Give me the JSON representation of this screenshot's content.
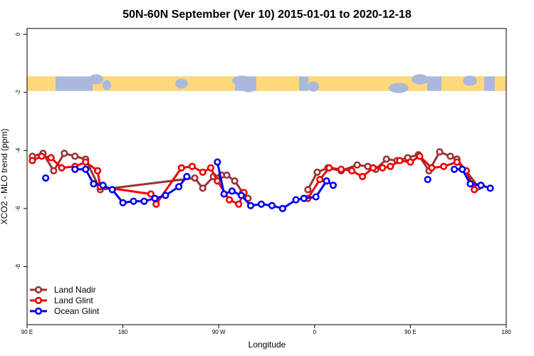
{
  "chart_data": {
    "type": "line",
    "title": "50N-60N September (Ver 10)   2015-01-01 to 2020-12-18",
    "xlabel": "Longitude",
    "ylabel": "XCO2 - MLO trend (ppm)",
    "xlim": [
      -90,
      270
    ],
    "ylim": [
      -10,
      0.2
    ],
    "x_ticks": [
      {
        "value": -90,
        "label": "90 E"
      },
      {
        "value": -18,
        "label": "180"
      },
      {
        "value": 54,
        "label": "90 W"
      },
      {
        "value": 126,
        "label": "0"
      },
      {
        "value": 198,
        "label": "90 E"
      },
      {
        "value": 270,
        "label": "180"
      }
    ],
    "y_ticks": [
      {
        "value": 0,
        "label": "0"
      },
      {
        "value": -2,
        "label": "-2"
      },
      {
        "value": -4,
        "label": "-4"
      },
      {
        "value": -6,
        "label": "-6"
      },
      {
        "value": -8,
        "label": "-8"
      }
    ],
    "map_strip": {
      "y_top": -1.45,
      "y_bottom": -1.95,
      "ocean_color": "#a9b8db",
      "land_color": "#ffd979"
    },
    "legend": {
      "position": "bottom-left"
    },
    "series": [
      {
        "name": "Land Nadir",
        "color": "#993333",
        "points": [
          [
            -86,
            -4.2
          ],
          [
            -78,
            -4.1
          ],
          [
            -70,
            -4.7
          ],
          [
            -62,
            -4.1
          ],
          [
            -54,
            -4.2
          ],
          [
            -46,
            -4.3
          ],
          [
            -35,
            -5.35
          ],
          [
            36,
            -4.95
          ],
          [
            42,
            -5.3
          ],
          [
            50,
            -4.9
          ],
          [
            56,
            -4.85
          ],
          [
            60,
            -4.85
          ],
          [
            66,
            -5.05
          ],
          [
            72,
            -5.45
          ],
          [
            76,
            -5.65
          ],
          null,
          [
            121,
            -5.35
          ],
          [
            128,
            -4.75
          ],
          [
            136,
            -4.6
          ],
          [
            146,
            -4.7
          ],
          [
            158,
            -4.5
          ],
          [
            166,
            -4.55
          ],
          [
            172,
            -4.65
          ],
          [
            180,
            -4.3
          ],
          [
            188,
            -4.35
          ],
          [
            196,
            -4.25
          ],
          [
            204,
            -4.15
          ],
          [
            212,
            -4.7
          ],
          [
            220,
            -4.05
          ],
          [
            228,
            -4.2
          ],
          [
            233,
            -4.3
          ],
          [
            249,
            -5.25
          ]
        ]
      },
      {
        "name": "Land Glint",
        "color": "#ee0000",
        "points": [
          [
            -86,
            -4.35
          ],
          [
            -79,
            -4.2
          ],
          [
            -72,
            -4.25
          ],
          [
            -64,
            -4.6
          ],
          [
            -54,
            -4.55
          ],
          [
            -46,
            -4.4
          ],
          [
            -37,
            -4.7
          ],
          [
            -35,
            -5.25
          ],
          [
            3,
            -5.5
          ],
          [
            7,
            -5.85
          ],
          [
            26,
            -4.6
          ],
          [
            34,
            -4.55
          ],
          [
            42,
            -4.75
          ],
          [
            48,
            -4.6
          ],
          [
            53,
            -5.05
          ],
          [
            62,
            -5.7
          ],
          [
            69,
            -5.85
          ],
          [
            73,
            -5.45
          ],
          null,
          [
            121,
            -5.65
          ],
          [
            130,
            -5.0
          ],
          [
            137,
            -4.6
          ],
          [
            146,
            -4.65
          ],
          [
            154,
            -4.7
          ],
          [
            162,
            -4.9
          ],
          [
            170,
            -4.6
          ],
          [
            177,
            -4.6
          ],
          [
            183,
            -4.55
          ],
          [
            190,
            -4.35
          ],
          [
            198,
            -4.4
          ],
          [
            205,
            -4.2
          ],
          [
            214,
            -4.6
          ],
          [
            223,
            -4.55
          ],
          [
            233,
            -4.4
          ],
          [
            240,
            -4.7
          ],
          [
            246,
            -5.35
          ]
        ]
      },
      {
        "name": "Ocean Glint",
        "color": "#0000ee",
        "points": [
          [
            -76,
            -4.95
          ],
          null,
          [
            -54,
            -4.65
          ],
          [
            -46,
            -4.65
          ],
          [
            -40,
            -5.15
          ],
          [
            -33,
            -5.2
          ],
          [
            -26,
            -5.35
          ],
          [
            -18,
            -5.8
          ],
          [
            -10,
            -5.75
          ],
          [
            -2,
            -5.75
          ],
          [
            6,
            -5.65
          ],
          [
            14,
            -5.55
          ],
          [
            24,
            -5.25
          ],
          [
            30,
            -4.9
          ],
          null,
          [
            53,
            -4.4
          ],
          [
            58,
            -5.5
          ],
          [
            64,
            -5.4
          ],
          [
            71,
            -5.55
          ],
          [
            78,
            -5.9
          ],
          [
            86,
            -5.85
          ],
          [
            94,
            -5.9
          ],
          [
            102,
            -6.0
          ],
          [
            112,
            -5.7
          ],
          [
            118,
            -5.65
          ],
          [
            127,
            -5.6
          ],
          [
            135,
            -5.05
          ],
          [
            140,
            -5.2
          ],
          null,
          [
            211,
            -5.0
          ],
          null,
          [
            231,
            -4.65
          ],
          [
            237,
            -4.65
          ],
          [
            243,
            -5.15
          ],
          [
            251,
            -5.2
          ],
          [
            258,
            -5.3
          ]
        ]
      }
    ]
  }
}
